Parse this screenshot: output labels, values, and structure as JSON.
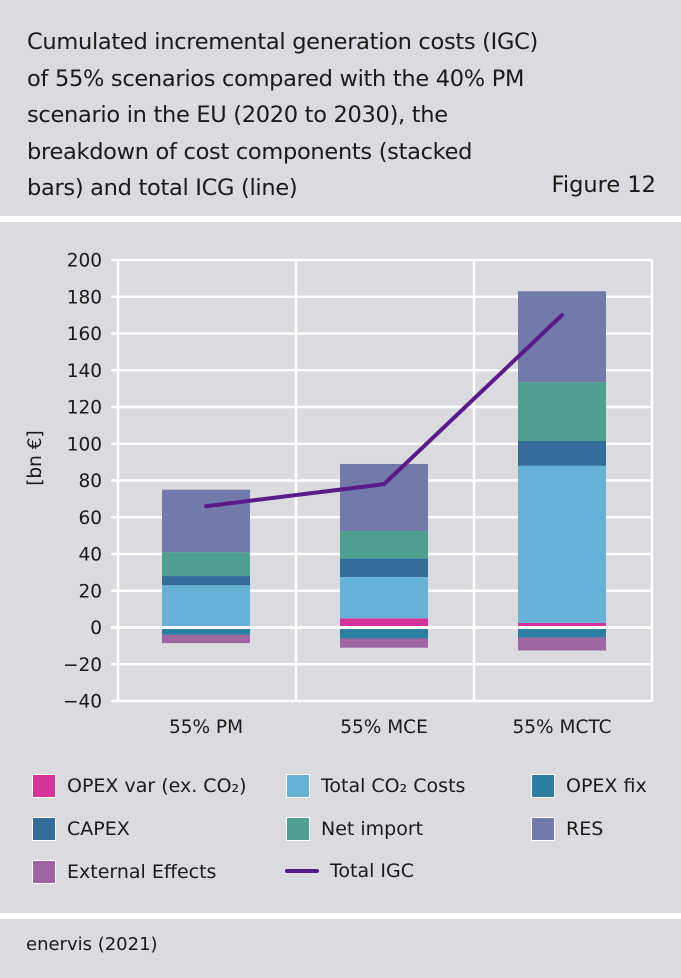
{
  "header": {
    "title_lines": [
      "Cumulated incremental generation costs (IGC)",
      "of 55% scenarios compared with the 40% PM",
      "scenario in the EU (2020 to 2030), the",
      "breakdown of cost components (stacked",
      "bars) and total ICG (line)"
    ],
    "figure_label": "Figure 12"
  },
  "source": "enervis (2021)",
  "chart_data": {
    "type": "bar",
    "stacked": true,
    "title": "Cumulated incremental generation costs (IGC) of 55% scenarios compared with the 40% PM scenario in the EU (2020 to 2030), the breakdown of cost components (stacked bars) and total ICG (line)",
    "xlabel": "",
    "ylabel": "[bn €]",
    "ylim": [
      -40,
      200
    ],
    "yticks": [
      -40,
      -20,
      0,
      20,
      40,
      60,
      80,
      100,
      120,
      140,
      160,
      180,
      200
    ],
    "ytick_labels": [
      "−40",
      "−20",
      "0",
      "20",
      "40",
      "60",
      "80",
      "100",
      "120",
      "140",
      "160",
      "180",
      "200"
    ],
    "grid": true,
    "legend_position": "bottom",
    "categories": [
      "55% PM",
      "55% MCE",
      "55% MCTC"
    ],
    "series": [
      {
        "name": "OPEX var (ex. CO₂)",
        "key": "opex_var",
        "color": "#D6339A",
        "values": [
          0,
          5,
          2.5
        ]
      },
      {
        "name": "Total CO₂ Costs",
        "key": "total_co2",
        "color": "#66B2D6",
        "values": [
          23,
          22.5,
          85.5
        ]
      },
      {
        "name": "OPEX fix",
        "key": "opex_fix",
        "color": "#2B7FA0",
        "values": [
          -4,
          -6,
          -5.5
        ]
      },
      {
        "name": "CAPEX",
        "key": "capex",
        "color": "#356D9A",
        "values": [
          5,
          10,
          13.5
        ]
      },
      {
        "name": "Net import",
        "key": "net_import",
        "color": "#4FA091",
        "values": [
          13,
          15,
          32
        ]
      },
      {
        "name": "RES",
        "key": "res",
        "color": "#727AAA",
        "values": [
          34,
          36.5,
          49.5
        ]
      },
      {
        "name": "External Effects",
        "key": "external",
        "color": "#A066A4",
        "values": [
          -4.5,
          -5,
          -7
        ]
      }
    ],
    "stack_order_positive": [
      "opex_var",
      "total_co2",
      "capex",
      "net_import",
      "res"
    ],
    "stack_order_negative": [
      "opex_fix",
      "external"
    ],
    "line_series": {
      "name": "Total IGC",
      "color": "#5A1A8A",
      "values": [
        66,
        78,
        170
      ]
    }
  }
}
